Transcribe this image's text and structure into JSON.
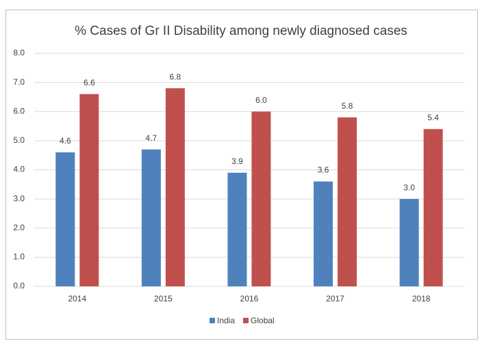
{
  "chart_data": {
    "type": "bar",
    "title": "% Cases of Gr II Disability among newly diagnosed cases",
    "categories": [
      "2014",
      "2015",
      "2016",
      "2017",
      "2018"
    ],
    "series": [
      {
        "name": "India",
        "color": "#4f81bd",
        "values": [
          4.6,
          4.7,
          3.9,
          3.6,
          3.0
        ],
        "value_labels": [
          "4.6",
          "4.7",
          "3.9",
          "3.6",
          "3.0"
        ]
      },
      {
        "name": "Global",
        "color": "#c0504d",
        "values": [
          6.6,
          6.8,
          6.0,
          5.8,
          5.4
        ],
        "value_labels": [
          "6.6",
          "6.8",
          "6.0",
          "5.8",
          "5.4"
        ]
      }
    ],
    "ylim": [
      0,
      8
    ],
    "yticks": [
      {
        "value": 0,
        "label": "0.0"
      },
      {
        "value": 1,
        "label": "1.0"
      },
      {
        "value": 2,
        "label": "2.0"
      },
      {
        "value": 3,
        "label": "3.0"
      },
      {
        "value": 4,
        "label": "4.0"
      },
      {
        "value": 5,
        "label": "5.0"
      },
      {
        "value": 6,
        "label": "6.0"
      },
      {
        "value": 7,
        "label": "7.0"
      },
      {
        "value": 8,
        "label": "8.0"
      }
    ],
    "grid": true,
    "legend": "bottom"
  }
}
